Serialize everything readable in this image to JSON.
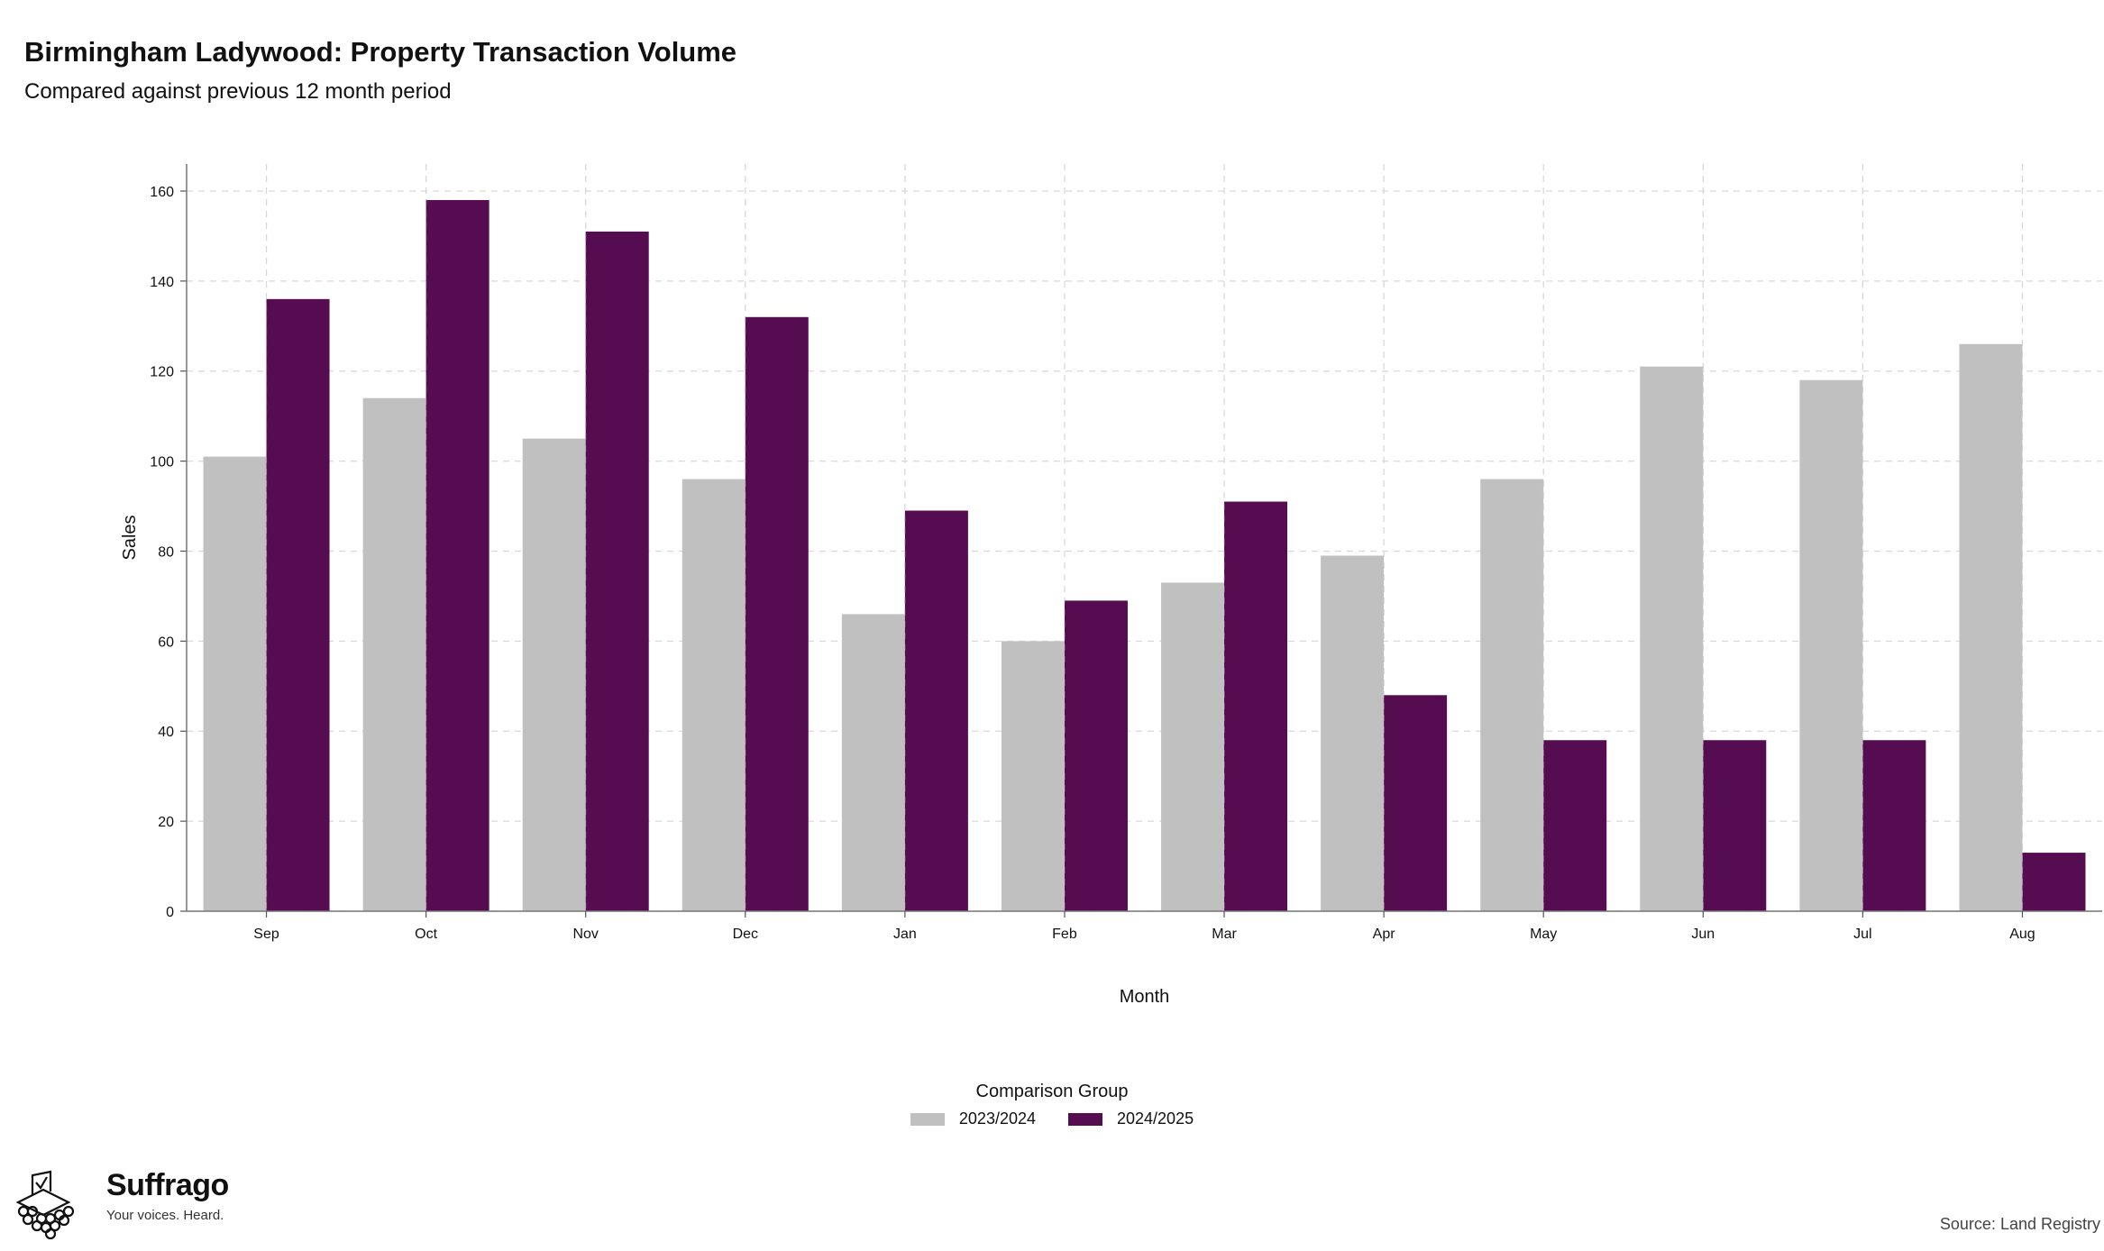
{
  "title": "Birmingham Ladywood: Property Transaction Volume",
  "subtitle": "Compared against previous 12 month period",
  "chart_data": {
    "type": "bar",
    "xlabel": "Month",
    "ylabel": "Sales",
    "ylim": [
      0,
      166
    ],
    "yticks": [
      0,
      20,
      40,
      60,
      80,
      100,
      120,
      140,
      160
    ],
    "grid": true,
    "categories": [
      "Sep",
      "Oct",
      "Nov",
      "Dec",
      "Jan",
      "Feb",
      "Mar",
      "Apr",
      "May",
      "Jun",
      "Jul",
      "Aug"
    ],
    "series": [
      {
        "name": "2023/2024",
        "color": "#c0c0c0",
        "values": [
          101,
          114,
          105,
          96,
          66,
          60,
          73,
          79,
          96,
          121,
          118,
          126
        ]
      },
      {
        "name": "2024/2025",
        "color": "#550c51",
        "values": [
          136,
          158,
          151,
          132,
          89,
          69,
          91,
          48,
          38,
          38,
          38,
          13
        ]
      }
    ],
    "legend_title": "Comparison Group",
    "legend_position": "bottom"
  },
  "brand": {
    "name": "Suffrago",
    "tagline": "Your voices. Heard."
  },
  "source": "Source: Land Registry"
}
